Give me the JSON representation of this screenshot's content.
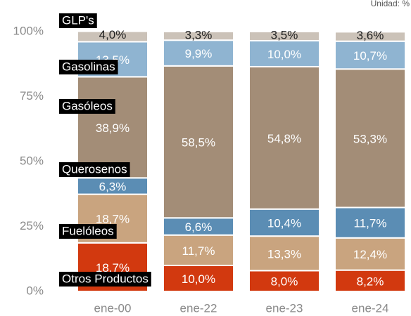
{
  "chart_data": {
    "type": "stacked_bar",
    "subtitle": "Unidad: %",
    "categories": [
      "ene-00",
      "ene-22",
      "ene-23",
      "ene-24"
    ],
    "series": [
      {
        "name": "Otros Productos",
        "color": "#d2390f",
        "values": [
          18.7,
          10.0,
          8.0,
          8.2
        ],
        "value_labels": [
          "18,7%",
          "10,0%",
          "8,0%",
          "8,2%"
        ]
      },
      {
        "name": "Fuelóleos",
        "color": "#c9a47f",
        "values": [
          18.7,
          11.7,
          13.3,
          12.4
        ],
        "value_labels": [
          "18,7%",
          "11,7%",
          "13,3%",
          "12,4%"
        ]
      },
      {
        "name": "Querosenos",
        "color": "#5b8db4",
        "values": [
          6.3,
          6.6,
          10.4,
          11.7
        ],
        "value_labels": [
          "6,3%",
          "6,6%",
          "10,4%",
          "11,7%"
        ]
      },
      {
        "name": "Gasóleos",
        "color": "#a38d77",
        "values": [
          38.9,
          58.5,
          54.8,
          53.3
        ],
        "value_labels": [
          "38,9%",
          "58,5%",
          "54,8%",
          "53,3%"
        ]
      },
      {
        "name": "Gasolinas",
        "color": "#8fb4d1",
        "values": [
          13.5,
          9.9,
          10.0,
          10.7
        ],
        "value_labels": [
          "13,5%",
          "9,9%",
          "10,0%",
          "10,7%"
        ]
      },
      {
        "name": "GLP's",
        "color": "#cbc2b8",
        "values": [
          4.0,
          3.3,
          3.5,
          3.6
        ],
        "value_labels": [
          "4,0%",
          "3,3%",
          "3,5%",
          "3,6%"
        ]
      }
    ],
    "ylim": [
      0,
      100
    ],
    "yticks": [
      {
        "value": 0,
        "label": "0%"
      },
      {
        "value": 25,
        "label": "25%"
      },
      {
        "value": 50,
        "label": "50%"
      },
      {
        "value": 75,
        "label": "75%"
      },
      {
        "value": 100,
        "label": "100%"
      }
    ],
    "grid": false
  }
}
